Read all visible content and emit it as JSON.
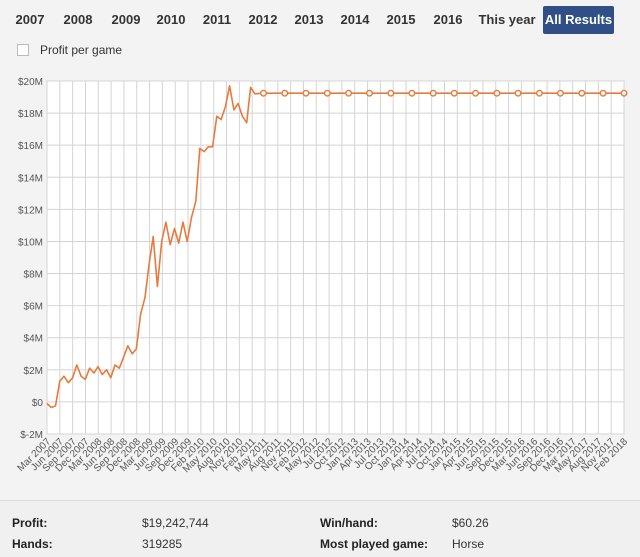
{
  "year_tabs": [
    "2007",
    "2008",
    "2009",
    "2010",
    "2011",
    "2012",
    "2013",
    "2014",
    "2015",
    "2016",
    "This year",
    "All Results"
  ],
  "active_tab": "All Results",
  "options": {
    "profit_per_game_label": "Profit per game",
    "profit_per_game_checked": false
  },
  "chart_data": {
    "type": "line",
    "series": [
      {
        "color": "#e87a3c",
        "points": [
          [
            "2007-03-01",
            -0.1
          ],
          [
            "2007-04-01",
            -0.35
          ],
          [
            "2007-05-01",
            -0.25
          ],
          [
            "2007-06-01",
            1.3
          ],
          [
            "2007-07-01",
            1.6
          ],
          [
            "2007-08-01",
            1.2
          ],
          [
            "2007-09-01",
            1.5
          ],
          [
            "2007-10-01",
            2.3
          ],
          [
            "2007-11-01",
            1.6
          ],
          [
            "2007-12-01",
            1.4
          ],
          [
            "2008-01-01",
            2.1
          ],
          [
            "2008-02-01",
            1.8
          ],
          [
            "2008-03-01",
            2.2
          ],
          [
            "2008-04-01",
            1.7
          ],
          [
            "2008-05-01",
            2.0
          ],
          [
            "2008-06-01",
            1.5
          ],
          [
            "2008-07-01",
            2.3
          ],
          [
            "2008-08-01",
            2.1
          ],
          [
            "2008-09-01",
            2.8
          ],
          [
            "2008-10-01",
            3.5
          ],
          [
            "2008-11-01",
            3.0
          ],
          [
            "2008-12-01",
            3.3
          ],
          [
            "2009-01-01",
            5.5
          ],
          [
            "2009-02-01",
            6.5
          ],
          [
            "2009-03-01",
            8.5
          ],
          [
            "2009-04-01",
            10.3
          ],
          [
            "2009-05-01",
            7.2
          ],
          [
            "2009-06-01",
            10.0
          ],
          [
            "2009-07-01",
            11.2
          ],
          [
            "2009-08-01",
            9.8
          ],
          [
            "2009-09-01",
            10.8
          ],
          [
            "2009-10-01",
            9.9
          ],
          [
            "2009-11-01",
            11.2
          ],
          [
            "2009-12-01",
            10.0
          ],
          [
            "2010-01-01",
            11.5
          ],
          [
            "2010-02-01",
            12.5
          ],
          [
            "2010-03-01",
            15.8
          ],
          [
            "2010-04-01",
            15.6
          ],
          [
            "2010-05-01",
            15.9
          ],
          [
            "2010-06-01",
            15.9
          ],
          [
            "2010-07-01",
            17.8
          ],
          [
            "2010-08-01",
            17.6
          ],
          [
            "2010-09-01",
            18.4
          ],
          [
            "2010-10-01",
            19.7
          ],
          [
            "2010-11-01",
            18.2
          ],
          [
            "2010-12-01",
            18.6
          ],
          [
            "2011-01-01",
            17.8
          ],
          [
            "2011-02-01",
            17.4
          ],
          [
            "2011-03-01",
            19.6
          ],
          [
            "2011-04-01",
            19.2
          ],
          [
            "2011-06-01",
            19.24
          ],
          [
            "2011-11-01",
            19.24
          ],
          [
            "2012-04-01",
            19.24
          ],
          [
            "2012-09-01",
            19.24
          ],
          [
            "2013-02-01",
            19.24
          ],
          [
            "2013-07-01",
            19.24
          ],
          [
            "2013-12-01",
            19.24
          ],
          [
            "2014-05-01",
            19.24
          ],
          [
            "2014-10-01",
            19.24
          ],
          [
            "2015-03-01",
            19.24
          ],
          [
            "2015-08-01",
            19.24
          ],
          [
            "2016-01-01",
            19.24
          ],
          [
            "2016-06-01",
            19.24
          ],
          [
            "2016-11-01",
            19.24
          ],
          [
            "2017-04-01",
            19.24
          ],
          [
            "2017-09-01",
            19.24
          ],
          [
            "2018-02-01",
            19.24
          ],
          [
            "2018-07-01",
            19.24
          ]
        ],
        "markers": [
          "2011-06-01",
          "2011-11-01",
          "2012-04-01",
          "2012-09-01",
          "2013-02-01",
          "2013-07-01",
          "2013-12-01",
          "2014-05-01",
          "2014-10-01",
          "2015-03-01",
          "2015-08-01",
          "2016-01-01",
          "2016-06-01",
          "2016-11-01",
          "2017-04-01",
          "2017-09-01",
          "2018-02-01",
          "2018-07-01"
        ]
      }
    ],
    "y_ticks": [
      "$-2M",
      "$0",
      "$2M",
      "$4M",
      "$6M",
      "$8M",
      "$10M",
      "$12M",
      "$14M",
      "$16M",
      "$18M",
      "$20M"
    ],
    "y_tick_values": [
      -2,
      0,
      2,
      4,
      6,
      8,
      10,
      12,
      14,
      16,
      18,
      20
    ],
    "ylim": [
      -2,
      20
    ],
    "x_start": "2007-03-01",
    "x_end": "2018-07-01",
    "x_tick_labels": [
      "Mar 2007",
      "Jun 2007",
      "Sep 2007",
      "Dec 2007",
      "Mar 2008",
      "Jun 2008",
      "Sep 2008",
      "Dec 2008",
      "Mar 2009",
      "Jun 2009",
      "Sep 2009",
      "Dec 2009",
      "Feb 2010",
      "May 2010",
      "Aug 2010",
      "Nov 2010",
      "Feb 2011",
      "May 2011",
      "Aug 2011",
      "Nov 2011",
      "Feb 2012",
      "May 2012",
      "Jul 2012",
      "Oct 2012",
      "Jan 2013",
      "Apr 2013",
      "Jul 2013",
      "Oct 2013",
      "Jan 2014",
      "Apr 2014",
      "Jul 2014",
      "Oct 2014",
      "Jan 2015",
      "Apr 2015",
      "Jun 2015",
      "Sep 2015",
      "Dec 2015",
      "Mar 2016",
      "Jun 2016",
      "Sep 2016",
      "Dec 2016",
      "Mar 2017",
      "May 2017",
      "Aug 2017",
      "Nov 2017",
      "Feb 2018"
    ],
    "grid": true
  },
  "stats": {
    "profit_label": "Profit:",
    "profit_value": "$19,242,744",
    "hands_label": "Hands:",
    "hands_value": "319285",
    "winhand_label": "Win/hand:",
    "winhand_value": "$60.26",
    "most_played_label": "Most played game:",
    "most_played_value": "Horse"
  }
}
